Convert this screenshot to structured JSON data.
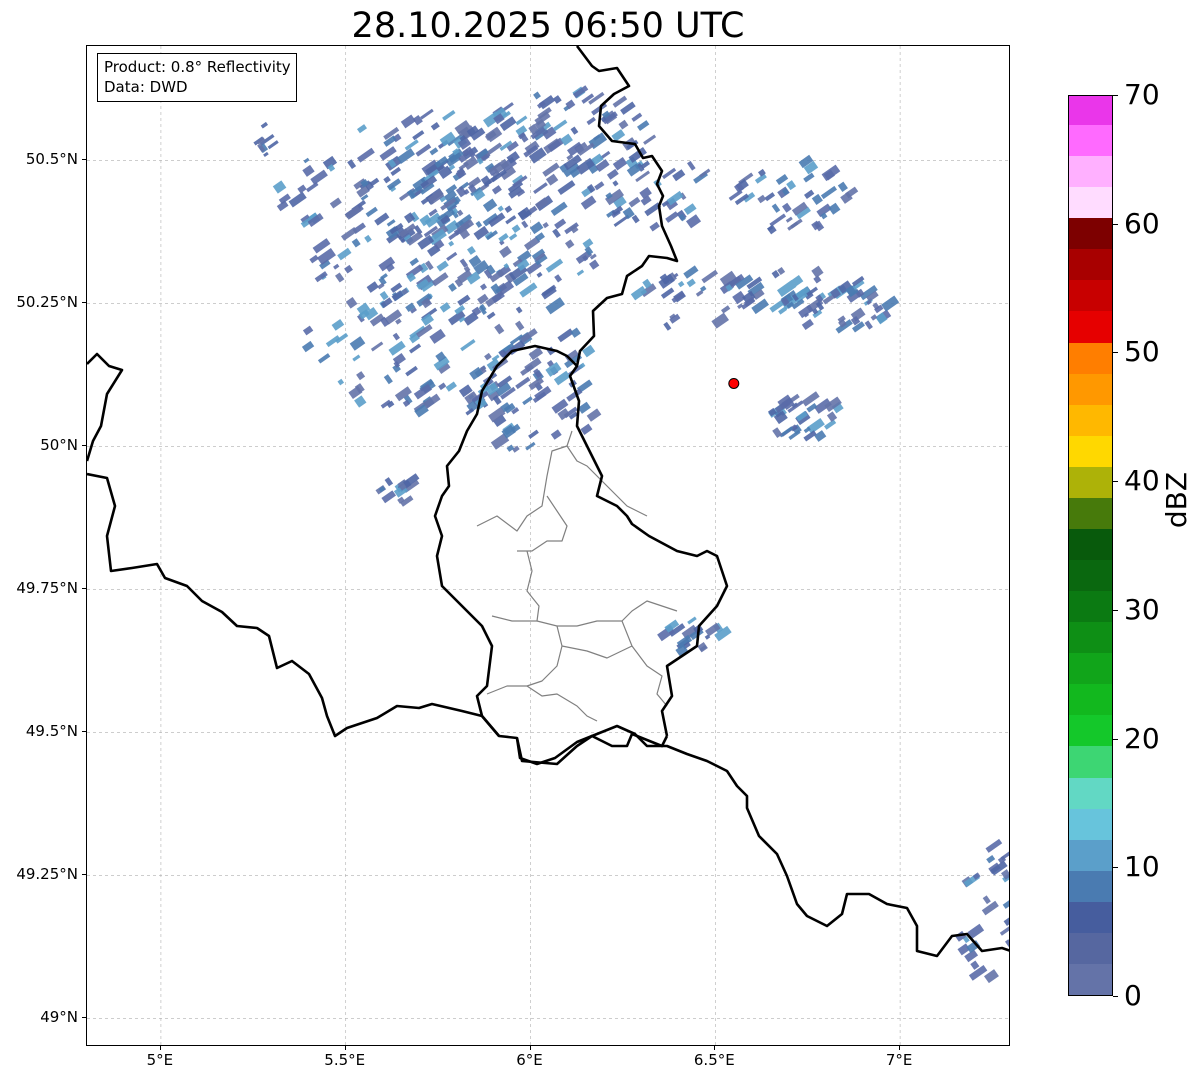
{
  "title": "28.10.2025 06:50 UTC",
  "info": {
    "line1": "Product: 0.8° Reflectivity",
    "line2": "Data: DWD"
  },
  "map": {
    "extent": {
      "lon_min": 4.8,
      "lon_max": 7.3,
      "lat_min": 48.95,
      "lat_max": 50.7
    },
    "grid": true,
    "lat_ticks": [
      {
        "value": 50.5,
        "label": "50.5°N"
      },
      {
        "value": 50.25,
        "label": "50.25°N"
      },
      {
        "value": 50.0,
        "label": "50°N"
      },
      {
        "value": 49.75,
        "label": "49.75°N"
      },
      {
        "value": 49.5,
        "label": "49.5°N"
      },
      {
        "value": 49.25,
        "label": "49.25°N"
      },
      {
        "value": 49.0,
        "label": "49°N"
      }
    ],
    "lon_ticks": [
      {
        "value": 5.0,
        "label": "5°E"
      },
      {
        "value": 5.5,
        "label": "5.5°E"
      },
      {
        "value": 6.0,
        "label": "6°E"
      },
      {
        "value": 6.5,
        "label": "6.5°E"
      },
      {
        "value": 7.0,
        "label": "7°E"
      }
    ],
    "marker": {
      "lon": 6.55,
      "lat": 50.11,
      "color": "#ff0000"
    },
    "border_color": "#000000",
    "admin_color": "#808080"
  },
  "colorbar": {
    "unit": "dBZ",
    "min": 0,
    "max": 70,
    "labels": [
      0,
      10,
      20,
      30,
      40,
      50,
      60,
      70
    ],
    "colors": [
      "#6473a8",
      "#5667a0",
      "#465d9e",
      "#4a7bb1",
      "#5b9fca",
      "#67c4dc",
      "#62d8c4",
      "#3dd673",
      "#14c82a",
      "#12b81e",
      "#11a51a",
      "#0e8f15",
      "#0b7a12",
      "#0a680f",
      "#085a0c",
      "#477a0b",
      "#adb208",
      "#ffd800",
      "#ffb800",
      "#ff9800",
      "#ff7e00",
      "#e60000",
      "#c80000",
      "#a80000",
      "#7d0000",
      "#ffdcff",
      "#ffb0ff",
      "#ff6aff",
      "#ea36ea"
    ]
  }
}
